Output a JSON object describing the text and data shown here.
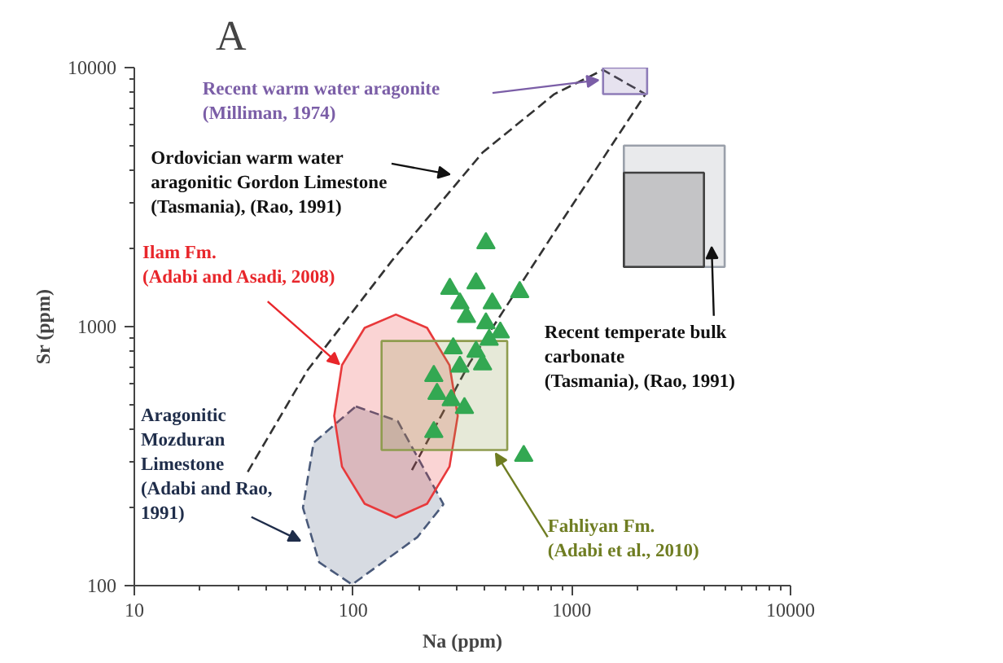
{
  "chart_data": {
    "type": "scatter",
    "title": "A",
    "xlabel": "Na (ppm)",
    "ylabel": "Sr (ppm)",
    "log": "xy",
    "xlim": [
      10,
      10000
    ],
    "ylim": [
      100,
      10000
    ],
    "xticks": [
      10,
      100,
      1000,
      10000
    ],
    "yticks": [
      100,
      1000,
      10000
    ],
    "grid": false,
    "series": [
      {
        "type": "line",
        "line_style": "dashed",
        "color": "#333333",
        "x": [
          33,
          62,
          150,
          391,
          832,
          1390,
          2170,
          832,
          341,
          184
        ],
        "values": [
          275,
          680,
          1790,
          4700,
          7900,
          9800,
          7900,
          2310,
          724,
          275
        ]
      },
      {
        "type": "area",
        "line_style": "dashed",
        "color": "#4a5a7a",
        "x": [
          103,
          160,
          259,
          197,
          99,
          70,
          59,
          66,
          103
        ],
        "values": [
          492,
          432,
          206,
          154,
          101,
          123,
          200,
          356,
          492
        ]
      },
      {
        "type": "area",
        "line_style": "solid",
        "color": "#e8393b",
        "x": [
          301,
          276,
          218,
          157,
          113,
          89,
          82,
          89,
          113,
          157,
          218,
          276,
          301
        ],
        "values": [
          452,
          710,
          989,
          1114,
          989,
          710,
          452,
          288,
          207,
          183,
          207,
          288,
          452
        ]
      },
      {
        "type": "area",
        "line_style": "solid",
        "color": "#8f9c4f",
        "x": [
          135,
          507,
          507,
          135,
          135
        ],
        "values": [
          334,
          334,
          880,
          880,
          334
        ]
      },
      {
        "type": "area",
        "line_style": "solid",
        "color": "#8e7cb8",
        "x": [
          1390,
          2210,
          2210,
          1390,
          1390
        ],
        "values": [
          7900,
          7900,
          10000,
          10000,
          7900
        ]
      },
      {
        "type": "area",
        "line_style": "solid",
        "color": "#9aa0aa",
        "x": [
          1730,
          5000,
          5000,
          1730,
          1730
        ],
        "values": [
          1700,
          1700,
          5000,
          5000,
          1700
        ]
      },
      {
        "type": "area",
        "line_style": "solid",
        "color": "#404040",
        "x": [
          1730,
          4020,
          4020,
          1730,
          1730
        ],
        "values": [
          1700,
          1700,
          3930,
          3930,
          1700
        ]
      },
      {
        "marker": "triangle",
        "color": "#33a852",
        "x": [
          405,
          277,
          365,
          308,
          330,
          433,
          578,
          405,
          471,
          419,
          287,
          365,
          308,
          391,
          234,
          242,
          281,
          323,
          234,
          603
        ],
        "values": [
          2100,
          1400,
          1470,
          1230,
          1090,
          1230,
          1360,
          1030,
          950,
          890,
          825,
          800,
          700,
          715,
          645,
          550,
          520,
          485,
          392,
          317
        ]
      }
    ],
    "annotations": [
      "Recent warm  water aragonite\n(Milliman, 1974)",
      "Ordovician  warm  water\naragonitic  Gordon  Limestone\n(Tasmania),  (Rao, 1991)",
      {
        "text": "Ilam Fm.\n(Adabi and Asadi, 2008)",
        "x": 86.6,
        "y": 715
      },
      "Aragonitic\nMozduran\nLimestone\n(Adabi  and  Rao,\n1991)",
      "Recent temperate bulk\ncarbonate\n(Tasmania),   (Rao, 1991)",
      {
        "text": "Fahliyan  Fm.\n(Adabi et al., 2010)",
        "x": 449,
        "y": 324
      }
    ]
  }
}
